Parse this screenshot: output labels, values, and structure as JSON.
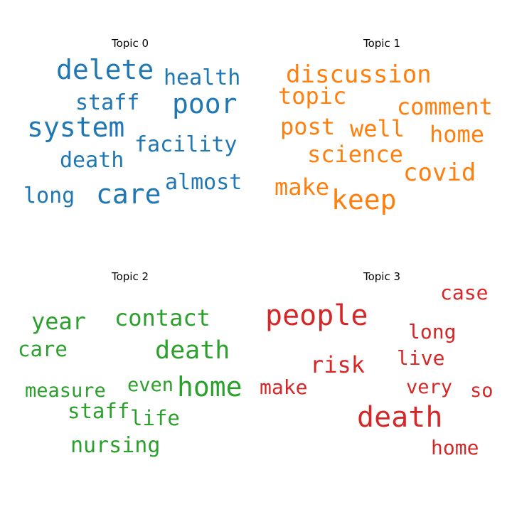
{
  "chart_data": {
    "type": "wordcloud",
    "panels": [
      {
        "title": "Topic 0",
        "color": "#1f77b4",
        "words": [
          "delete",
          "poor",
          "system",
          "care",
          "health",
          "staff",
          "facility",
          "death",
          "almost",
          "long"
        ]
      },
      {
        "title": "Topic 1",
        "color": "#ff7f0e",
        "words": [
          "discussion",
          "keep",
          "topic",
          "comment",
          "post",
          "well",
          "home",
          "science",
          "covid",
          "make"
        ]
      },
      {
        "title": "Topic 2",
        "color": "#2ca02c",
        "words": [
          "contact",
          "year",
          "death",
          "home",
          "care",
          "measure",
          "even",
          "staff",
          "life",
          "nursing"
        ]
      },
      {
        "title": "Topic 3",
        "color": "#d62728",
        "words": [
          "people",
          "death",
          "case",
          "long",
          "risk",
          "live",
          "make",
          "very",
          "so",
          "home"
        ]
      }
    ]
  }
}
